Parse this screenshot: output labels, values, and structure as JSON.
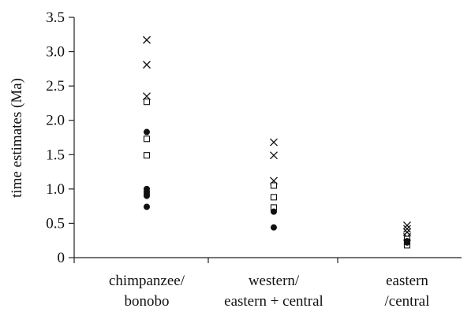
{
  "chart_data": {
    "type": "scatter",
    "title": "",
    "xlabel": "",
    "ylabel": "time estimates (Ma)",
    "ylim": [
      0,
      3.5
    ],
    "yticks": [
      "0",
      "0.5",
      "1.0",
      "1.5",
      "2.0",
      "2.5",
      "3.0",
      "3.5"
    ],
    "grid": false,
    "legend": "none",
    "categories": [
      [
        "chimpanzee/",
        "bonobo"
      ],
      [
        "western/",
        "eastern + central"
      ],
      [
        "eastern",
        "/central"
      ]
    ],
    "series": [
      {
        "marker": "cross",
        "points": [
          {
            "category": 0,
            "y": 3.17
          },
          {
            "category": 0,
            "y": 2.81
          },
          {
            "category": 0,
            "y": 2.35
          },
          {
            "category": 1,
            "y": 1.68
          },
          {
            "category": 1,
            "y": 1.49
          },
          {
            "category": 1,
            "y": 1.12
          },
          {
            "category": 2,
            "y": 0.47
          },
          {
            "category": 2,
            "y": 0.42
          },
          {
            "category": 2,
            "y": 0.37
          },
          {
            "category": 2,
            "y": 0.3
          }
        ]
      },
      {
        "marker": "open-square",
        "points": [
          {
            "category": 0,
            "y": 2.27
          },
          {
            "category": 0,
            "y": 1.73
          },
          {
            "category": 0,
            "y": 1.49
          },
          {
            "category": 1,
            "y": 1.05
          },
          {
            "category": 1,
            "y": 0.88
          },
          {
            "category": 1,
            "y": 0.73
          },
          {
            "category": 2,
            "y": 0.27
          },
          {
            "category": 2,
            "y": 0.21
          },
          {
            "category": 2,
            "y": 0.18
          }
        ]
      },
      {
        "marker": "filled-circle",
        "points": [
          {
            "category": 0,
            "y": 1.83
          },
          {
            "category": 0,
            "y": 1.0
          },
          {
            "category": 0,
            "y": 0.96
          },
          {
            "category": 0,
            "y": 0.93
          },
          {
            "category": 0,
            "y": 0.9
          },
          {
            "category": 0,
            "y": 0.74
          },
          {
            "category": 1,
            "y": 0.67
          },
          {
            "category": 1,
            "y": 0.44
          },
          {
            "category": 2,
            "y": 0.24
          },
          {
            "category": 2,
            "y": 0.22
          }
        ]
      }
    ]
  }
}
